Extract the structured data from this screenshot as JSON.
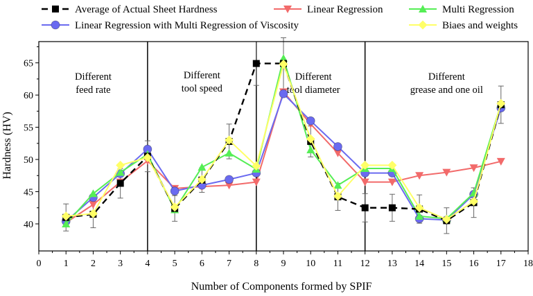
{
  "chart_data": {
    "type": "line",
    "xlabel": "Number of Components formed by SPIF",
    "ylabel": "Hardness (HV)",
    "xlim": [
      0,
      18
    ],
    "ylim": [
      35.8,
      68.3
    ],
    "xticks": [
      0,
      1,
      2,
      3,
      4,
      5,
      6,
      7,
      8,
      9,
      10,
      11,
      12,
      13,
      14,
      15,
      16,
      17,
      18
    ],
    "yticks": [
      40,
      45,
      50,
      55,
      60,
      65
    ],
    "grid": false,
    "legend_position": "top",
    "dividers": [
      4,
      8,
      12
    ],
    "annotations": [
      {
        "lines": [
          "Different",
          "feed rate"
        ],
        "x": 2.0,
        "y": 62.4
      },
      {
        "lines": [
          "Different",
          "tool speed"
        ],
        "x": 6.0,
        "y": 62.6
      },
      {
        "lines": [
          "Different",
          "tool diameter"
        ],
        "x": 10.1,
        "y": 62.4
      },
      {
        "lines": [
          "Different",
          "grease and one oil"
        ],
        "x": 15.0,
        "y": 62.4
      }
    ],
    "series": [
      {
        "name": "Average of Actual Sheet Hardness",
        "color": "#000000",
        "marker": "square",
        "dash": true,
        "x": [
          1,
          2,
          3,
          4,
          5,
          6,
          7,
          8,
          9,
          10,
          11,
          12,
          13,
          14,
          15,
          16,
          17
        ],
        "values": [
          41.0,
          41.5,
          46.3,
          50.5,
          42.4,
          46.8,
          52.8,
          64.9,
          64.9,
          52.8,
          44.2,
          42.5,
          42.5,
          42.3,
          40.5,
          43.3,
          58.5
        ],
        "errors": [
          2.1,
          2.1,
          2.3,
          2.4,
          2.0,
          1.9,
          2.7,
          3.4,
          4.0,
          2.4,
          2.1,
          2.2,
          2.1,
          2.2,
          2.0,
          2.3,
          2.9
        ]
      },
      {
        "name": "Linear Regression",
        "color": "#f26a6a",
        "marker": "triangle-down",
        "x": [
          1,
          2,
          3,
          4,
          5,
          6,
          7,
          8,
          9,
          10,
          11,
          12,
          13,
          14,
          15,
          16,
          17
        ],
        "values": [
          40.2,
          43.0,
          46.5,
          49.8,
          45.5,
          45.8,
          46.0,
          46.5,
          60.5,
          55.5,
          51.0,
          46.5,
          46.5,
          47.5,
          48.0,
          48.7,
          49.7
        ]
      },
      {
        "name": "Multi Regression",
        "color": "#55ee55",
        "marker": "triangle-up",
        "x": [
          1,
          2,
          3,
          4,
          5,
          6,
          7,
          8,
          9,
          10,
          11,
          12,
          13,
          14,
          15,
          16,
          17
        ],
        "values": [
          40.0,
          44.7,
          48.0,
          50.8,
          42.2,
          48.8,
          51.0,
          48.5,
          65.7,
          51.5,
          46.0,
          48.6,
          48.6,
          41.2,
          40.8,
          44.8,
          58.6
        ]
      },
      {
        "name": "Linear Regression with Multi Regression of Viscosity",
        "color": "#6a6af0",
        "marker": "circle",
        "x": [
          1,
          2,
          3,
          4,
          5,
          6,
          7,
          8,
          9,
          10,
          11,
          12,
          13,
          14,
          15,
          16,
          17
        ],
        "values": [
          40.4,
          44.1,
          47.8,
          51.6,
          45.1,
          46.0,
          46.9,
          47.9,
          60.2,
          56.0,
          52.0,
          47.9,
          47.9,
          40.8,
          40.6,
          44.6,
          58.0
        ]
      },
      {
        "name": "Biaes and weights",
        "color": "#ffff66",
        "marker": "diamond",
        "x": [
          1,
          2,
          3,
          4,
          5,
          6,
          7,
          8,
          9,
          10,
          11,
          12,
          13,
          14,
          15,
          16,
          17
        ],
        "values": [
          41.2,
          41.6,
          49.1,
          50.3,
          42.6,
          46.9,
          53.0,
          49.0,
          64.8,
          53.2,
          44.3,
          49.1,
          49.1,
          42.5,
          40.7,
          43.5,
          58.7
        ]
      }
    ]
  }
}
